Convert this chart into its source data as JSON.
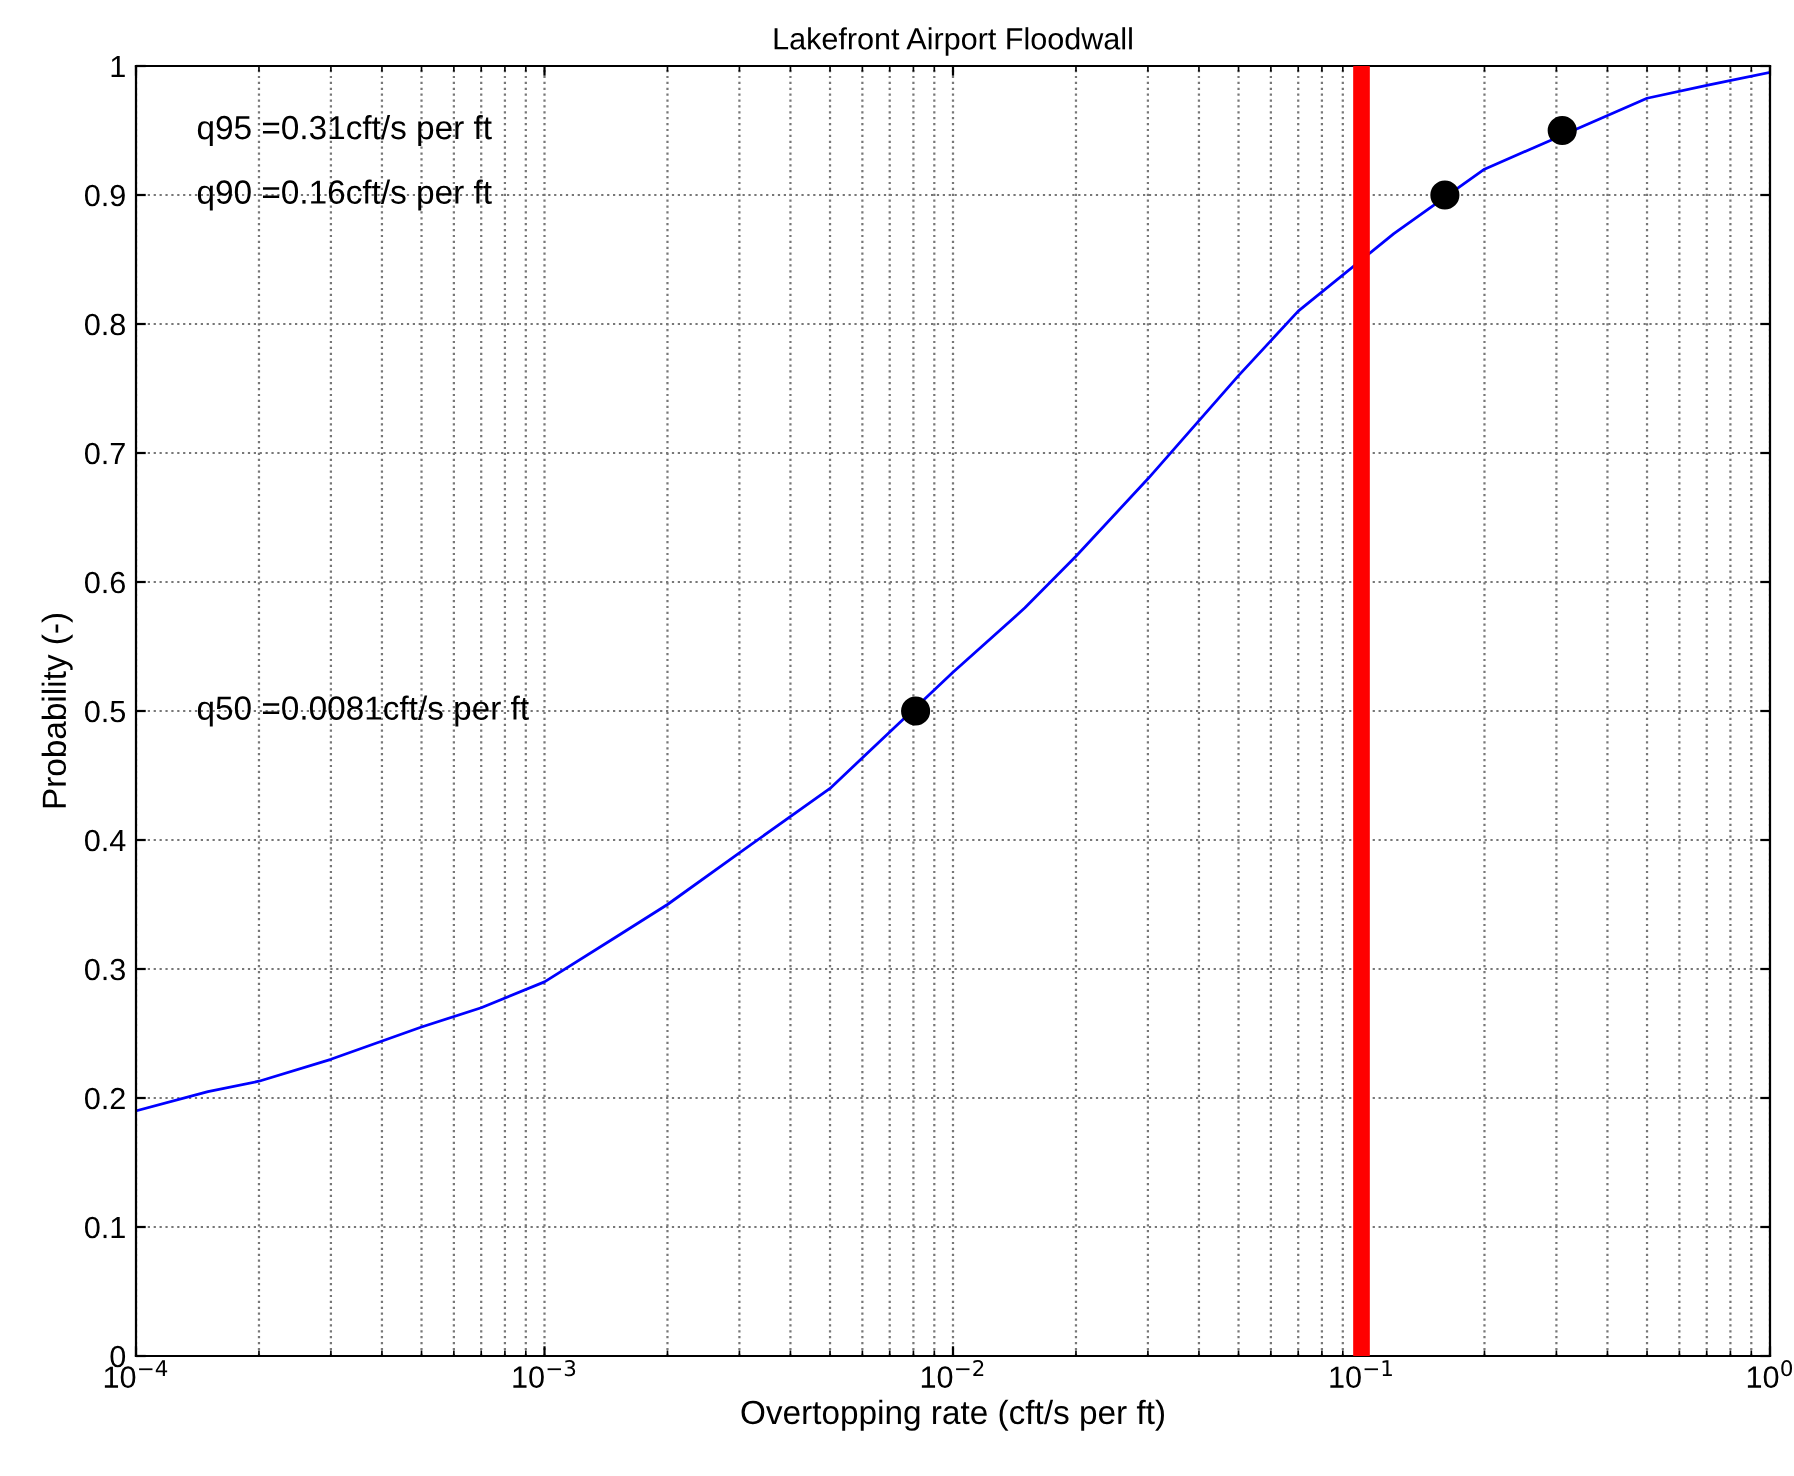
{
  "chart_data": {
    "type": "line",
    "title": "Lakefront Airport Floodwall",
    "xlabel": "Overtopping rate (cft/s per ft)",
    "ylabel": "Probability (-)",
    "log": "x",
    "xlim": [
      0.0001,
      1
    ],
    "ylim": [
      0,
      1
    ],
    "xticks": [
      {
        "value": 0.0001,
        "label": "10$^{−4}$"
      },
      {
        "value": 0.001,
        "label": "10$^{−3}$"
      },
      {
        "value": 0.01,
        "label": "10$^{−2}$"
      },
      {
        "value": 0.1,
        "label": "10$^{−1}$"
      },
      {
        "value": 1,
        "label": "10$^{0}$"
      }
    ],
    "yticks": [
      0,
      0.1,
      0.2,
      0.3,
      0.4,
      0.5,
      0.6,
      0.7,
      0.8,
      0.9,
      1
    ],
    "grid": true,
    "series": [
      {
        "color": "#0000ff",
        "marker": "none",
        "x": [
          0.0001,
          0.00015,
          0.0002,
          0.0003,
          0.0005,
          0.0007,
          0.001,
          0.0015,
          0.002,
          0.003,
          0.005,
          0.01,
          0.015,
          0.02,
          0.03,
          0.05,
          0.07,
          0.12,
          0.2,
          0.5,
          0.7,
          1
        ],
        "values": [
          0.19,
          0.205,
          0.213,
          0.23,
          0.255,
          0.27,
          0.29,
          0.325,
          0.35,
          0.39,
          0.44,
          0.53,
          0.58,
          0.62,
          0.68,
          0.76,
          0.81,
          0.87,
          0.92,
          0.975,
          0.985,
          0.995
        ]
      },
      {
        "type": "scatter",
        "color": "#000000",
        "marker": "circle",
        "x": [
          0.0081,
          0.16,
          0.31
        ],
        "values": [
          0.5,
          0.9,
          0.95
        ]
      }
    ],
    "ref_lines": [
      {
        "axis": "x",
        "value": 0.1,
        "color": "#ff0000"
      }
    ],
    "annotations": [
      "q95 =0.31cft/s per ft",
      "q90 =0.16cft/s per ft",
      "q50 =0.0081cft/s per ft"
    ]
  }
}
